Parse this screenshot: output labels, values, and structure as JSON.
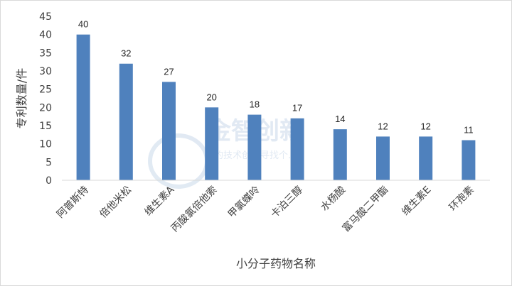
{
  "chart_data": {
    "type": "bar",
    "categories": [
      "阿普斯特",
      "倍他米松",
      "维生素A",
      "丙酸氯倍他索",
      "甲氯蝶呤",
      "卡泊三醇",
      "水杨酸",
      "富马酸二甲酯",
      "维生素E",
      "环孢素"
    ],
    "values": [
      40,
      32,
      27,
      20,
      18,
      17,
      14,
      12,
      12,
      11
    ],
    "title": "",
    "xlabel": "小分子药物名称",
    "ylabel": "专利数量/件",
    "ylim": [
      0,
      45
    ],
    "yticks": [
      0,
      5,
      10,
      15,
      20,
      25,
      30,
      35,
      40,
      45
    ],
    "grid": false,
    "legend": "none",
    "bar_color": "#4f81bd",
    "data_labels": true
  },
  "watermark": {
    "title": "金智创新",
    "subtitle": "的技术创新寻找个..."
  }
}
